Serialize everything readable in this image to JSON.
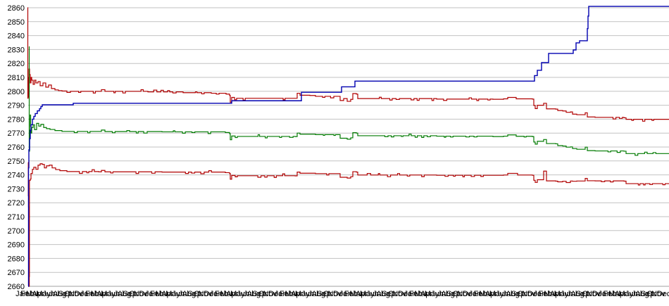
{
  "chart_data": {
    "type": "line",
    "title": "",
    "background": "#ffffff",
    "grid_color": "#c2c2c2",
    "bottom_axis_color": "#a0a0a0",
    "label_color": "#000000",
    "ylim": [
      2660,
      2860
    ],
    "ytick_step": 10,
    "yticks": [
      2660,
      2670,
      2680,
      2690,
      2700,
      2710,
      2720,
      2730,
      2740,
      2750,
      2760,
      2770,
      2780,
      2790,
      2800,
      2810,
      2820,
      2830,
      2840,
      2850,
      2860
    ],
    "x_months": [
      "Jan",
      "Feb",
      "Mar",
      "Apr",
      "May",
      "Jun",
      "Jul",
      "Aug",
      "Sep",
      "Oct",
      "Nov",
      "Dec"
    ],
    "x_years": 10,
    "x_total_ticks": 120,
    "legend_position": "none",
    "grid": true,
    "series": [
      {
        "name": "red-low",
        "color": "#b00000",
        "stroke_width": 1.2,
        "noise": {
          "enabled": true,
          "amplitude": 1.4,
          "seed": 23
        },
        "points": [
          [
            40,
            2749
          ],
          [
            40.2,
            2725
          ],
          [
            40.5,
            2717
          ],
          [
            40.7,
            2715
          ],
          [
            41,
            2693
          ],
          [
            41.2,
            2671
          ],
          [
            41.4,
            2660
          ],
          [
            41.6,
            2667
          ],
          [
            41.8,
            2736
          ],
          [
            43,
            2737
          ],
          [
            44,
            2741
          ],
          [
            46,
            2744
          ],
          [
            48,
            2745.5
          ],
          [
            51,
            2744
          ],
          [
            54,
            2747
          ],
          [
            57,
            2748
          ],
          [
            60,
            2747.5
          ],
          [
            63,
            2745
          ],
          [
            66,
            2746.5
          ],
          [
            70,
            2747
          ],
          [
            74,
            2745
          ],
          [
            79,
            2743.8
          ],
          [
            85,
            2743
          ],
          [
            95,
            2742.4
          ],
          [
            140,
            2742.2
          ],
          [
            144,
            2743.2
          ],
          [
            149,
            2742.2
          ],
          [
            230,
            2742
          ],
          [
            320,
            2741.6
          ],
          [
            326,
            2741
          ],
          [
            327,
            2736.9
          ],
          [
            329,
            2739.6
          ],
          [
            334,
            2738.6
          ],
          [
            337,
            2739.4
          ],
          [
            419,
            2739.3
          ],
          [
            422,
            2742
          ],
          [
            426,
            2741.2
          ],
          [
            448,
            2740.9
          ],
          [
            481,
            2740.9
          ],
          [
            483,
            2738.3
          ],
          [
            493,
            2737.7
          ],
          [
            498,
            2738.7
          ],
          [
            501,
            2742.3
          ],
          [
            506,
            2742
          ],
          [
            508,
            2739.9
          ],
          [
            620,
            2739.7
          ],
          [
            700,
            2739.7
          ],
          [
            715,
            2739.9
          ],
          [
            721,
            2741.1
          ],
          [
            733,
            2741.1
          ],
          [
            735,
            2739.9
          ],
          [
            756,
            2739.7
          ],
          [
            758,
            2736.1
          ],
          [
            760,
            2734.6
          ],
          [
            763,
            2736.5
          ],
          [
            771,
            2736.5
          ],
          [
            772,
            2742.7
          ],
          [
            775,
            2742.7
          ],
          [
            776,
            2735.7
          ],
          [
            789,
            2735.5
          ],
          [
            792,
            2735
          ],
          [
            799,
            2735.4
          ],
          [
            804,
            2734.5
          ],
          [
            810,
            2735.6
          ],
          [
            813,
            2735.4
          ],
          [
            819,
            2735.6
          ],
          [
            829,
            2735.6
          ],
          [
            831,
            2737.5
          ],
          [
            834,
            2735.8
          ],
          [
            845,
            2735.7
          ],
          [
            886,
            2735.5
          ],
          [
            889,
            2733.7
          ],
          [
            950,
            2733.6
          ]
        ]
      },
      {
        "name": "red-high",
        "color": "#b00000",
        "stroke_width": 1.2,
        "noise": {
          "enabled": true,
          "amplitude": 1.4,
          "seed": 11
        },
        "points": [
          [
            39,
            2860
          ],
          [
            39.5,
            2795
          ],
          [
            40,
            2810
          ],
          [
            40.5,
            2796
          ],
          [
            41,
            2816
          ],
          [
            42,
            2812
          ],
          [
            43,
            2806
          ],
          [
            44,
            2810
          ],
          [
            45,
            2808
          ],
          [
            47,
            2805
          ],
          [
            49,
            2808
          ],
          [
            51,
            2806
          ],
          [
            54,
            2807
          ],
          [
            57,
            2804
          ],
          [
            61,
            2806
          ],
          [
            65,
            2803
          ],
          [
            69,
            2804.5
          ],
          [
            73,
            2802
          ],
          [
            78,
            2801
          ],
          [
            83,
            2800.5
          ],
          [
            88,
            2800.2
          ],
          [
            95,
            2799.2
          ],
          [
            100,
            2800
          ],
          [
            140,
            2800
          ],
          [
            144,
            2801.2
          ],
          [
            149,
            2800
          ],
          [
            210,
            2799.6
          ],
          [
            260,
            2799
          ],
          [
            300,
            2798.6
          ],
          [
            321,
            2798
          ],
          [
            326,
            2797
          ],
          [
            327,
            2792.2
          ],
          [
            329,
            2795.6
          ],
          [
            333,
            2794
          ],
          [
            336,
            2795
          ],
          [
            419,
            2795
          ],
          [
            422,
            2798.6
          ],
          [
            426,
            2797.2
          ],
          [
            440,
            2797
          ],
          [
            448,
            2796.4
          ],
          [
            481,
            2796.4
          ],
          [
            483,
            2793.4
          ],
          [
            488,
            2794.8
          ],
          [
            493,
            2792.8
          ],
          [
            498,
            2794.2
          ],
          [
            501,
            2798.4
          ],
          [
            506,
            2798
          ],
          [
            508,
            2794.8
          ],
          [
            620,
            2794.4
          ],
          [
            700,
            2794.3
          ],
          [
            715,
            2794.6
          ],
          [
            721,
            2795.6
          ],
          [
            731,
            2795.6
          ],
          [
            733,
            2794.6
          ],
          [
            756,
            2794.4
          ],
          [
            758,
            2789.8
          ],
          [
            760,
            2787.6
          ],
          [
            763,
            2790
          ],
          [
            771,
            2790
          ],
          [
            772,
            2791.4
          ],
          [
            775,
            2791.4
          ],
          [
            776,
            2787.4
          ],
          [
            789,
            2787.2
          ],
          [
            792,
            2786.2
          ],
          [
            799,
            2785.9
          ],
          [
            804,
            2784.9
          ],
          [
            810,
            2785.2
          ],
          [
            813,
            2783.6
          ],
          [
            819,
            2783.2
          ],
          [
            829,
            2783.2
          ],
          [
            831,
            2784.6
          ],
          [
            834,
            2781.6
          ],
          [
            845,
            2781.3
          ],
          [
            886,
            2781
          ],
          [
            889,
            2779.9
          ],
          [
            950,
            2779.8
          ]
        ]
      },
      {
        "name": "green",
        "color": "#007a00",
        "stroke_width": 1.2,
        "noise": {
          "enabled": true,
          "amplitude": 1.3,
          "seed": 37
        },
        "points": [
          [
            41,
            2832
          ],
          [
            41.5,
            2757
          ],
          [
            42,
            2780
          ],
          [
            43,
            2783
          ],
          [
            43.5,
            2775
          ],
          [
            44,
            2770
          ],
          [
            45,
            2774
          ],
          [
            47,
            2776
          ],
          [
            49,
            2772.5
          ],
          [
            52,
            2777
          ],
          [
            55,
            2775
          ],
          [
            58,
            2776.3
          ],
          [
            62,
            2774
          ],
          [
            66,
            2773.2
          ],
          [
            71,
            2772.6
          ],
          [
            78,
            2771.8
          ],
          [
            88,
            2771.2
          ],
          [
            140,
            2771.2
          ],
          [
            144,
            2772.2
          ],
          [
            149,
            2771.1
          ],
          [
            230,
            2770.9
          ],
          [
            320,
            2770.4
          ],
          [
            326,
            2769.6
          ],
          [
            327,
            2765.2
          ],
          [
            329,
            2767.9
          ],
          [
            334,
            2766.8
          ],
          [
            337,
            2767.6
          ],
          [
            419,
            2767.5
          ],
          [
            422,
            2770
          ],
          [
            426,
            2769.2
          ],
          [
            448,
            2768.9
          ],
          [
            481,
            2768.9
          ],
          [
            483,
            2766.3
          ],
          [
            493,
            2765.6
          ],
          [
            498,
            2766.6
          ],
          [
            501,
            2770.3
          ],
          [
            506,
            2770
          ],
          [
            508,
            2768.1
          ],
          [
            620,
            2767.8
          ],
          [
            700,
            2767.5
          ],
          [
            715,
            2767.8
          ],
          [
            721,
            2768.7
          ],
          [
            731,
            2768.7
          ],
          [
            733,
            2767.7
          ],
          [
            756,
            2767.5
          ],
          [
            758,
            2763.6
          ],
          [
            760,
            2762.1
          ],
          [
            763,
            2764.1
          ],
          [
            771,
            2764.1
          ],
          [
            772,
            2765.4
          ],
          [
            775,
            2765.4
          ],
          [
            776,
            2762.5
          ],
          [
            789,
            2762.3
          ],
          [
            792,
            2761
          ],
          [
            799,
            2760.7
          ],
          [
            804,
            2759.9
          ],
          [
            810,
            2760.1
          ],
          [
            813,
            2758.9
          ],
          [
            819,
            2758.4
          ],
          [
            829,
            2758.4
          ],
          [
            831,
            2759.9
          ],
          [
            834,
            2757.4
          ],
          [
            845,
            2757.2
          ],
          [
            886,
            2757
          ],
          [
            889,
            2755.3
          ],
          [
            950,
            2755.2
          ]
        ]
      },
      {
        "name": "blue",
        "color": "#0000b0",
        "stroke_width": 1.4,
        "noise": {
          "enabled": false,
          "amplitude": 0,
          "seed": 1
        },
        "points": [
          [
            40,
            2660
          ],
          [
            40.5,
            2745
          ],
          [
            41,
            2758
          ],
          [
            42,
            2766
          ],
          [
            43,
            2772
          ],
          [
            44,
            2776
          ],
          [
            46,
            2780
          ],
          [
            48,
            2782
          ],
          [
            50,
            2784
          ],
          [
            53,
            2786
          ],
          [
            56,
            2787.5
          ],
          [
            58,
            2789
          ],
          [
            60,
            2790.3
          ],
          [
            103,
            2790.3
          ],
          [
            104,
            2791.4
          ],
          [
            327,
            2791.4
          ],
          [
            329,
            2793.2
          ],
          [
            425,
            2793.2
          ],
          [
            428,
            2799.3
          ],
          [
            483,
            2799.3
          ],
          [
            485,
            2803.2
          ],
          [
            502,
            2803.2
          ],
          [
            504,
            2807.3
          ],
          [
            758,
            2807.3
          ],
          [
            759,
            2811.3
          ],
          [
            762,
            2811.3
          ],
          [
            763,
            2815.1
          ],
          [
            768,
            2815.1
          ],
          [
            769,
            2820.6
          ],
          [
            777,
            2820.6
          ],
          [
            779,
            2827.2
          ],
          [
            813,
            2827.2
          ],
          [
            814,
            2829.7
          ],
          [
            816,
            2829.7
          ],
          [
            818,
            2834.8
          ],
          [
            822,
            2834.8
          ],
          [
            823,
            2836.3
          ],
          [
            833,
            2836.3
          ],
          [
            834,
            2845
          ],
          [
            835,
            2854
          ],
          [
            836,
            2861
          ],
          [
            950,
            2861
          ]
        ]
      }
    ]
  }
}
